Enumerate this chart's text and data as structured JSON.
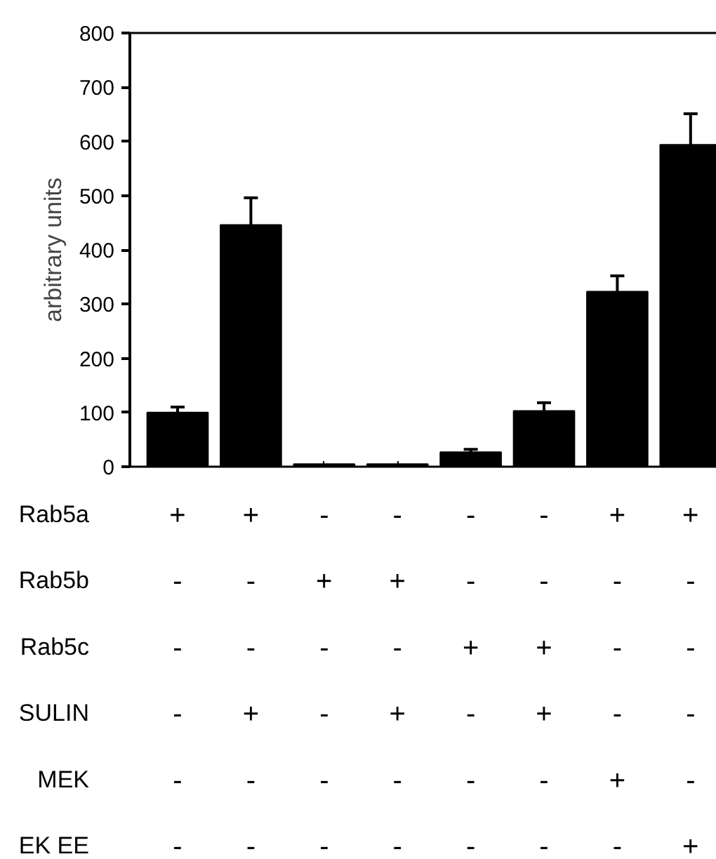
{
  "chart_data": {
    "type": "bar",
    "ylabel": "arbitrary units",
    "categories": [
      "+\n-\n-\n-\n-\n-",
      "+\n-\n-\n+\n-\n-",
      "-\n+\n-\n-\n-\n-",
      "-\n+\n-\n+\n-\n-",
      "-\n-\n+\n-\n-\n-",
      "-\n-\n+\n+\n-\n-",
      "+\n-\n-\n-\n+\n-",
      "+\n-\n-\n-\n-\n+"
    ],
    "values": [
      100,
      446,
      5,
      5,
      27,
      103,
      323,
      594
    ],
    "errors": [
      10,
      50,
      null,
      null,
      5,
      15,
      29,
      57
    ],
    "color": "#000000",
    "annotations": [
      "Rab5a",
      "Rab5b",
      "Rab5c",
      "SULIN",
      "MEK",
      "EK EE"
    ],
    "ylim": [
      0,
      800
    ],
    "yticks": [
      0,
      100,
      200,
      300,
      400,
      500,
      600,
      700,
      800
    ],
    "grid": false
  }
}
